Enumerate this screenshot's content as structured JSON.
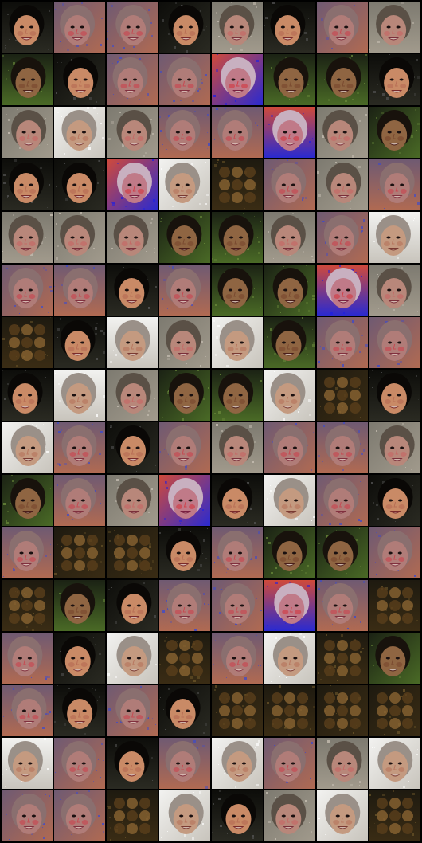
{
  "grid": {
    "rows": 16,
    "cols": 8,
    "palettes": {
      "dark": {
        "bg": "#0d0d0a",
        "bg2": "#2a2a22",
        "hair": "#0a0806",
        "skin": "#c98a66",
        "cheek": "#b86e55",
        "mouth": "#7a2a2a",
        "noise": "#555555"
      },
      "gray": {
        "bg": "#7d7a70",
        "bg2": "#a19a8c",
        "hair": "#5a5046",
        "skin": "#b8877a",
        "cheek": "#c46a66",
        "mouth": "#7a2f3a",
        "noise": "#c8c0b4"
      },
      "purple": {
        "bg": "#6f5a72",
        "bg2": "#b06a52",
        "hair": "#8a6f6f",
        "skin": "#b07c78",
        "cheek": "#c64a52",
        "mouth": "#80303e",
        "noise": "#3a4ad0"
      },
      "green": {
        "bg": "#1b2214",
        "bg2": "#4a6a26",
        "hair": "#18120c",
        "skin": "#8f6542",
        "cheek": "#7a4a30",
        "mouth": "#4a1e1a",
        "noise": "#6a8a3a"
      },
      "light": {
        "bg": "#f2f2f0",
        "bg2": "#c8c4bc",
        "hair": "#9a9088",
        "skin": "#c49a80",
        "cheek": "#b87860",
        "mouth": "#7a3a32",
        "noise": "#ffffff"
      },
      "blue": {
        "bg": "#d04a3a",
        "bg2": "#2a2ad0",
        "hair": "#c8b0c0",
        "skin": "#c07a88",
        "cheek": "#d0404a",
        "mouth": "#7a2040",
        "noise": "#2020e0"
      },
      "blob": {
        "bg": "#1e1a10",
        "bg2": "#3a2c14",
        "hair": "#241c0c",
        "skin": "#8a6432",
        "cheek": "#5a3e1c",
        "mouth": "#3a2810",
        "noise": "#6a5428"
      }
    },
    "tiles": [
      "dark",
      "purple",
      "purple",
      "dark",
      "gray",
      "dark",
      "purple",
      "gray",
      "green",
      "dark",
      "purple",
      "purple",
      "blue",
      "green",
      "green",
      "dark",
      "gray",
      "light",
      "gray",
      "purple",
      "purple",
      "blue",
      "gray",
      "green",
      "dark",
      "dark",
      "blue",
      "light",
      "blob",
      "purple",
      "gray",
      "purple",
      "gray",
      "gray",
      "gray",
      "green",
      "green",
      "gray",
      "purple",
      "light",
      "purple",
      "purple",
      "dark",
      "purple",
      "green",
      "green",
      "blue",
      "gray",
      "blob",
      "dark",
      "light",
      "gray",
      "light",
      "green",
      "purple",
      "purple",
      "dark",
      "light",
      "gray",
      "green",
      "green",
      "light",
      "blob",
      "dark",
      "light",
      "purple",
      "dark",
      "purple",
      "gray",
      "purple",
      "purple",
      "gray",
      "green",
      "purple",
      "gray",
      "blue",
      "dark",
      "light",
      "purple",
      "dark",
      "purple",
      "blob",
      "blob",
      "dark",
      "purple",
      "green",
      "green",
      "purple",
      "blob",
      "green",
      "dark",
      "purple",
      "purple",
      "blue",
      "purple",
      "blob",
      "purple",
      "dark",
      "light",
      "blob",
      "purple",
      "light",
      "blob",
      "green",
      "purple",
      "dark",
      "purple",
      "dark",
      "blob",
      "blob",
      "blob",
      "blob",
      "light",
      "purple",
      "dark",
      "purple",
      "light",
      "purple",
      "gray",
      "light",
      "purple",
      "purple",
      "blob",
      "light",
      "dark",
      "gray",
      "light",
      "blob"
    ]
  }
}
